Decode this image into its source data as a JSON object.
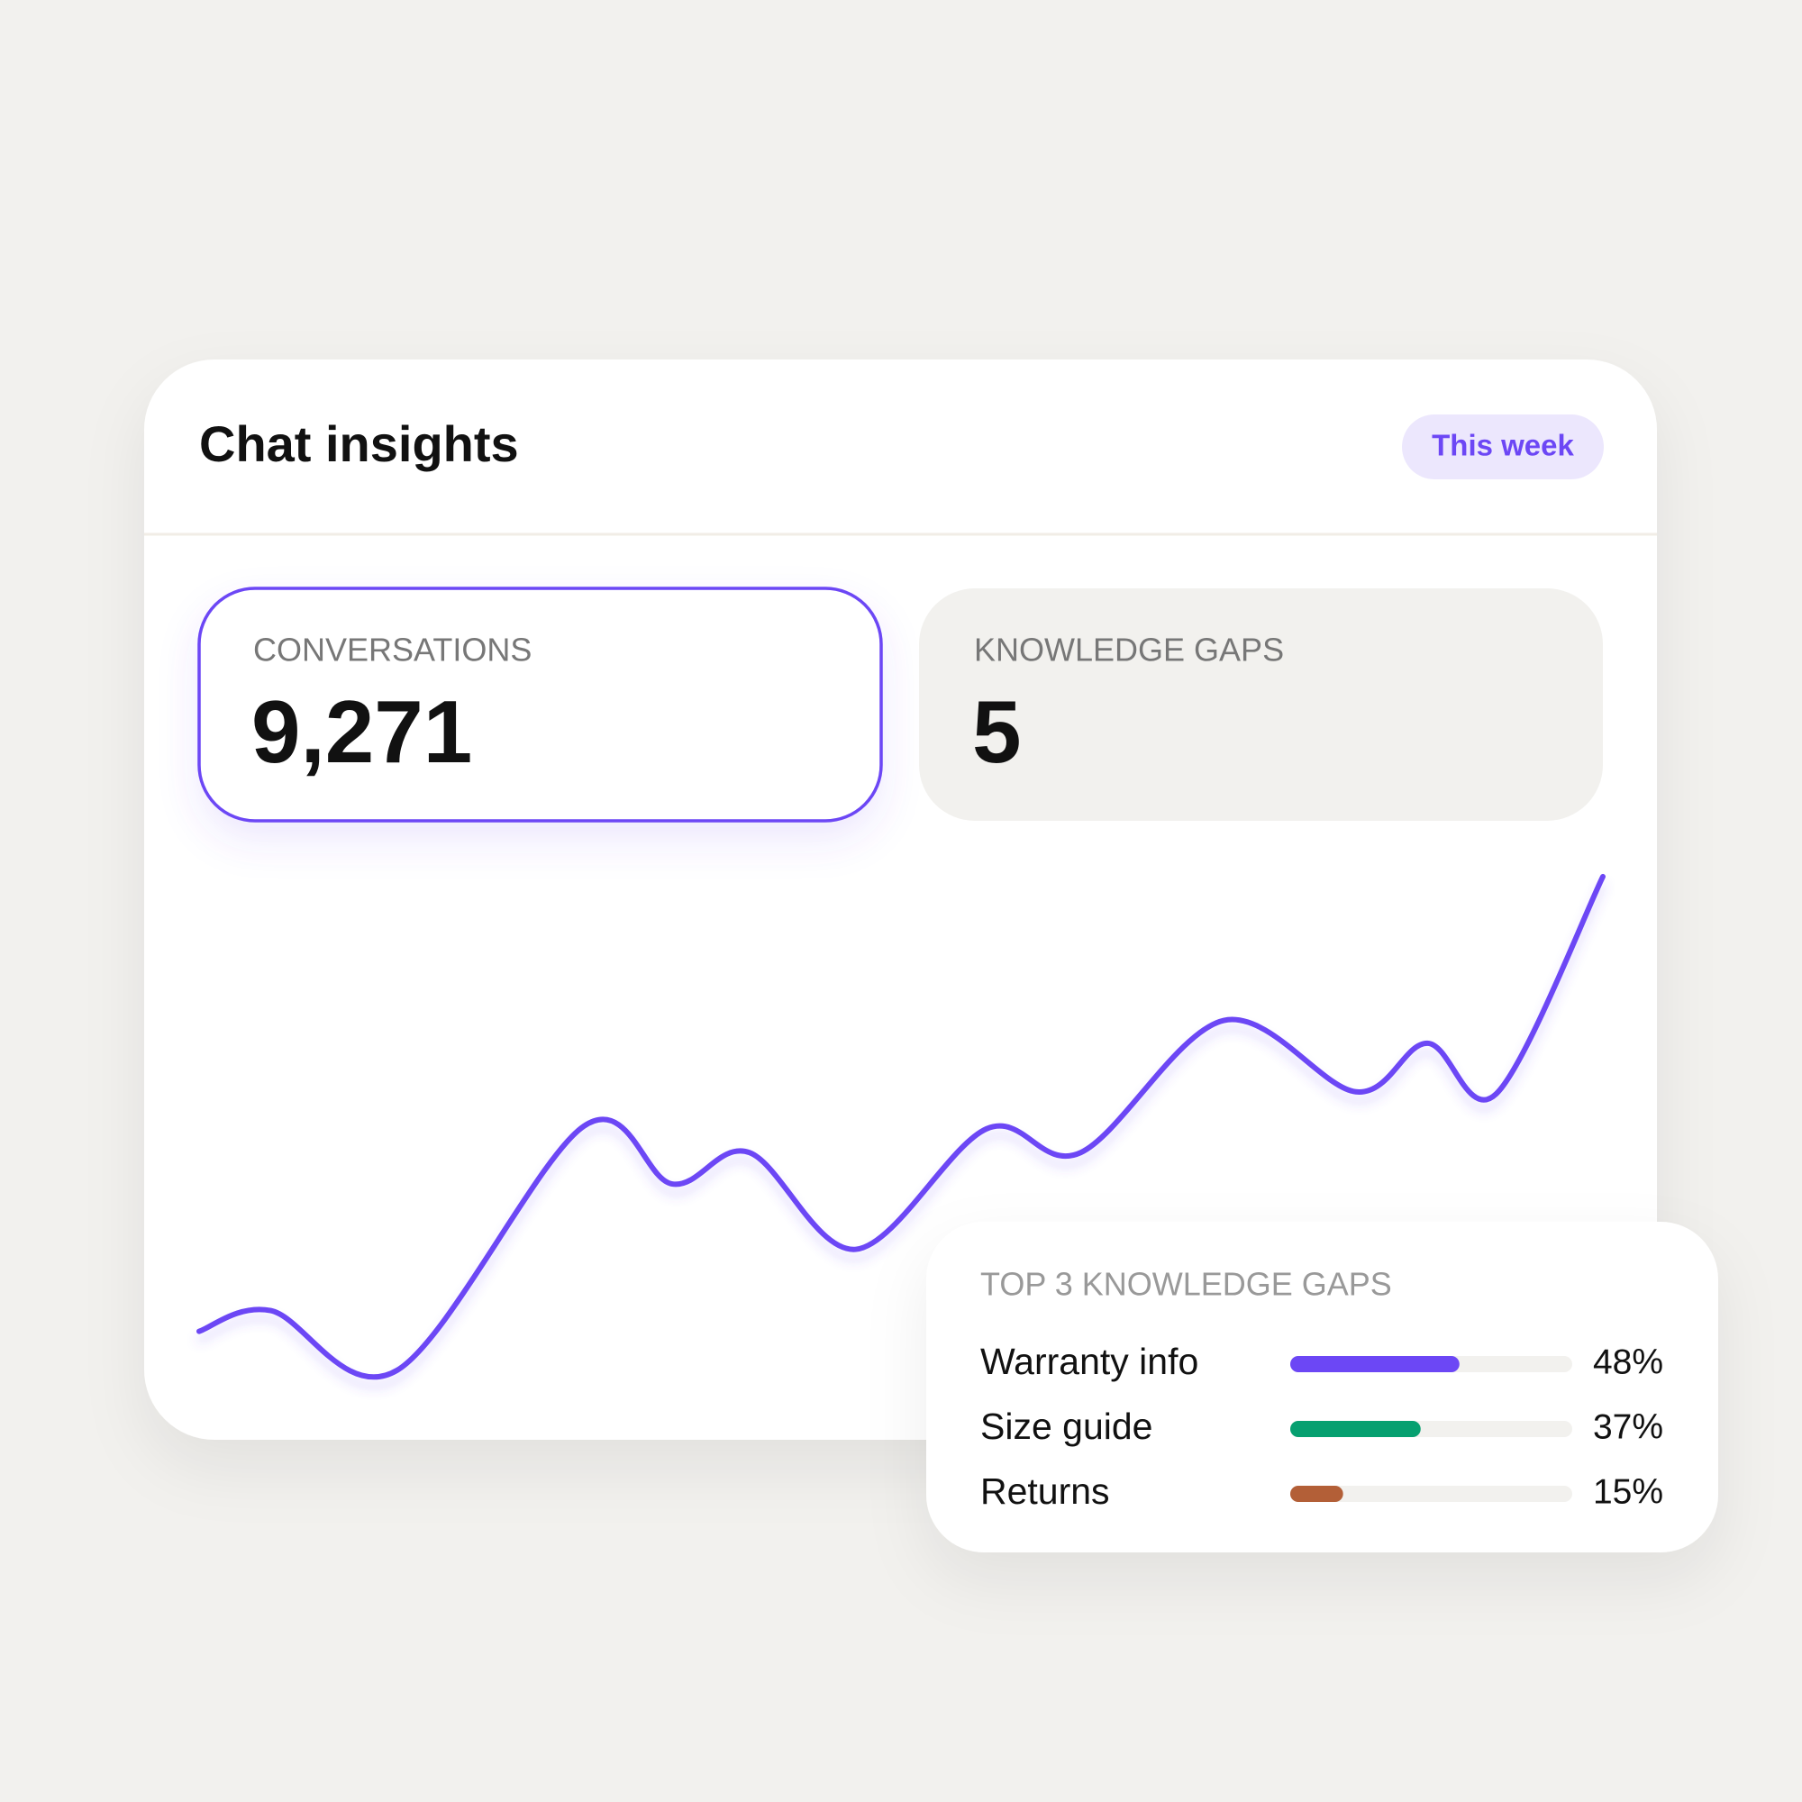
{
  "header": {
    "title": "Chat insights",
    "period": "This week"
  },
  "stats": [
    {
      "label": "CONVERSATIONS",
      "value": "9,271"
    },
    {
      "label": "KNOWLEDGE GAPS",
      "value": "5"
    }
  ],
  "chart_data": [
    {
      "type": "line",
      "x": [
        0,
        5.1,
        14.1,
        27.4,
        33.7,
        39.2,
        46.8,
        56.1,
        62.8,
        73.0,
        82.4,
        87.5,
        92.4,
        100
      ],
      "values": [
        9.5,
        13.6,
        1.8,
        50,
        38.6,
        44.8,
        25.7,
        49.5,
        44.8,
        70.9,
        56.8,
        66.4,
        56.4,
        99.3
      ],
      "color": "#6c47f5",
      "xlim": [
        0,
        100
      ],
      "ylim": [
        0,
        100
      ]
    },
    {
      "type": "bar",
      "title": "TOP 3 KNOWLEDGE GAPS",
      "categories": [
        "Warranty info",
        "Size guide",
        "Returns"
      ],
      "values": [
        48,
        37,
        15
      ],
      "value_labels": [
        "48%",
        "37%",
        "15%"
      ],
      "colors": [
        "#6c47f5",
        "#06a070",
        "#b35f37"
      ],
      "xlim": [
        0,
        80
      ]
    }
  ]
}
